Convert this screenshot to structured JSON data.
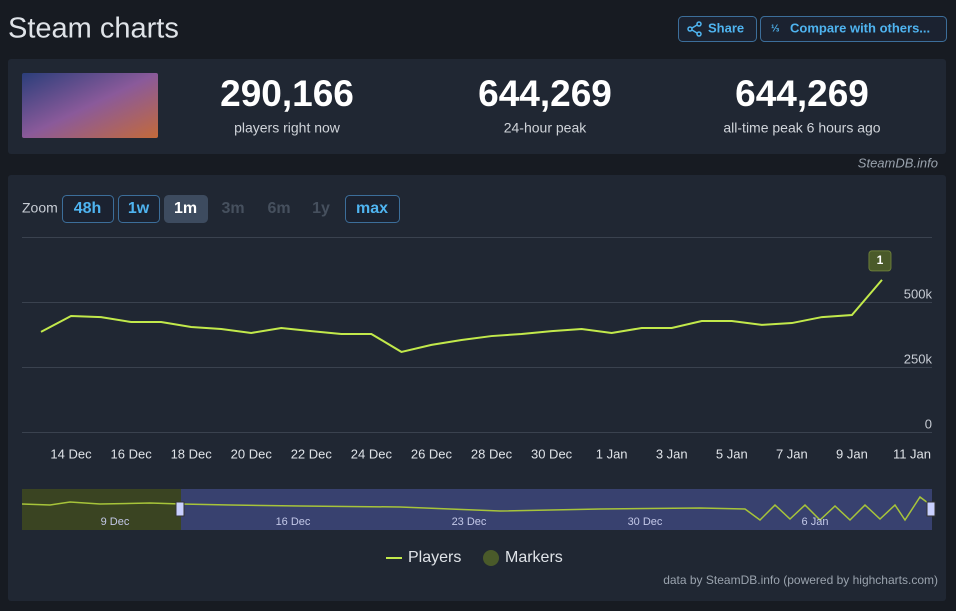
{
  "header": {
    "title": "Steam charts",
    "buttons": [
      "Share",
      "Compare with others..."
    ]
  },
  "stats": [
    {
      "value": "290,166",
      "label": "players right now"
    },
    {
      "value": "644,269",
      "label": "24-hour peak"
    },
    {
      "value": "644,269",
      "label": "all-time peak 6 hours ago"
    }
  ],
  "source": "SteamDB.info",
  "zoom": {
    "label": "Zoom",
    "buttons": [
      {
        "label": "48h",
        "state": "enabled"
      },
      {
        "label": "1w",
        "state": "enabled"
      },
      {
        "label": "1m",
        "state": "active"
      },
      {
        "label": "3m",
        "state": "disabled"
      },
      {
        "label": "6m",
        "state": "disabled"
      },
      {
        "label": "1y",
        "state": "disabled"
      },
      {
        "label": "max",
        "state": "enabled"
      }
    ]
  },
  "chart_data": {
    "type": "line",
    "categories": [
      null,
      "14 Dec",
      null,
      "16 Dec",
      null,
      "18 Dec",
      null,
      "20 Dec",
      null,
      "22 Dec",
      null,
      "24 Dec",
      null,
      "26 Dec",
      null,
      "28 Dec",
      null,
      "30 Dec",
      null,
      "1 Jan",
      null,
      "3 Jan",
      null,
      "5 Jan",
      null,
      "7 Jan",
      null,
      "9 Jan",
      null,
      "11 Jan"
    ],
    "series": [
      {
        "name": "Players",
        "color": "#c2e94b",
        "values": [
          385000,
          446000,
          442000,
          423000,
          423000,
          404000,
          396000,
          381000,
          400000,
          388000,
          377000,
          377000,
          308000,
          335000,
          354000,
          369000,
          377000,
          388000,
          396000,
          381000,
          400000,
          400000,
          427000,
          427000,
          412000,
          419000,
          442000,
          450000,
          585000,
          null
        ]
      }
    ],
    "ylim": [
      0,
      750000
    ],
    "yticks": [
      {
        "value": 0,
        "label": "0"
      },
      {
        "value": 250000,
        "label": "250k"
      },
      {
        "value": 500000,
        "label": "500k"
      }
    ],
    "grid": true,
    "annotations": [
      "1"
    ],
    "legend": [
      "Players",
      "Markers"
    ],
    "marker_color": "#4a5a2a"
  },
  "navigator": {
    "labels": [
      "9 Dec",
      "16 Dec",
      "23 Dec",
      "30 Dec",
      "6 Jan"
    ]
  },
  "footer": "data by SteamDB.info (powered by highcharts.com)"
}
